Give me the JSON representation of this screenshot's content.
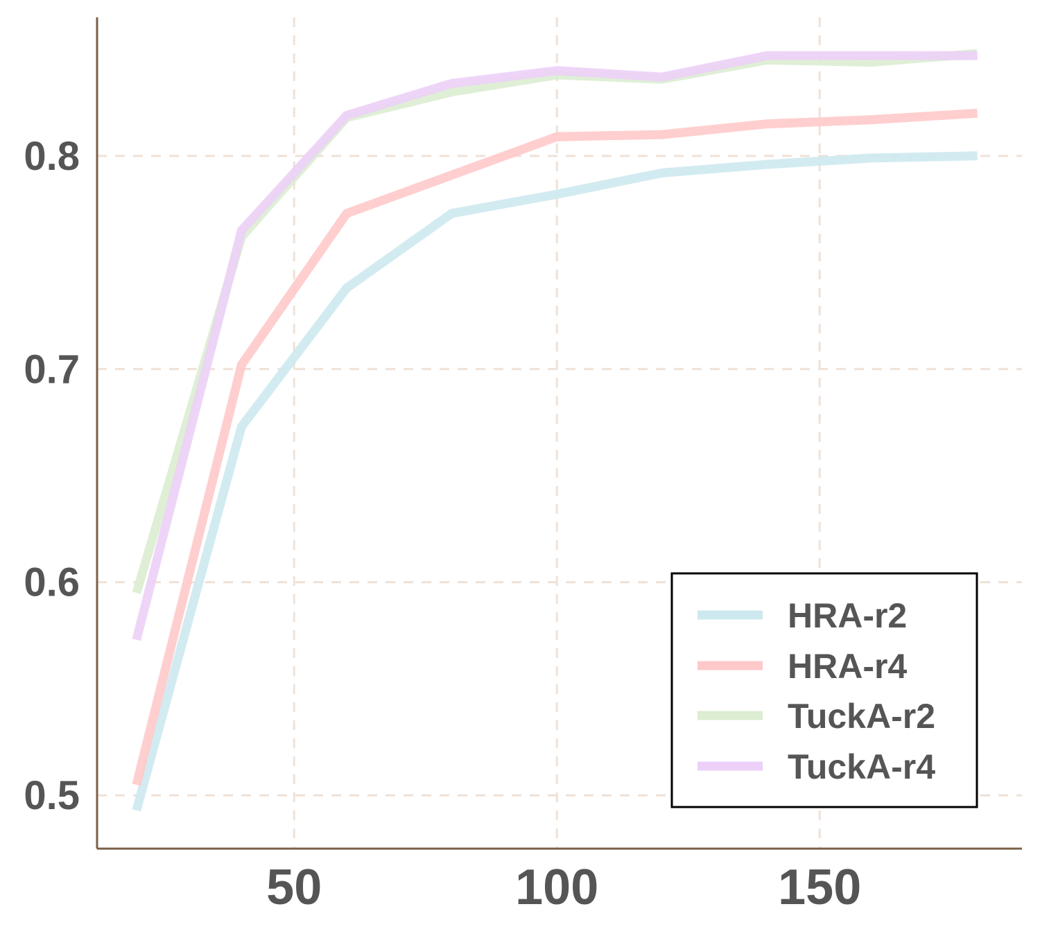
{
  "chart_data": {
    "type": "line",
    "title": "",
    "xlabel": "",
    "ylabel": "",
    "xlim": [
      12.5,
      188.5
    ],
    "ylim": [
      0.475,
      0.865
    ],
    "xticks": [
      50,
      100,
      150
    ],
    "xtick_labels": [
      "50",
      "100",
      "150"
    ],
    "yticks": [
      0.5,
      0.6,
      0.7,
      0.8
    ],
    "ytick_labels": [
      "0.5",
      "0.6",
      "0.7",
      "0.8"
    ],
    "grid": true,
    "legend_position": "bottom-right",
    "x": [
      20,
      40,
      60,
      80,
      100,
      120,
      140,
      160,
      180
    ],
    "series": [
      {
        "name": "HRA-r2",
        "color": "#cde9ef",
        "values": [
          0.493,
          0.673,
          0.738,
          0.773,
          0.782,
          0.792,
          0.796,
          0.799,
          0.8
        ]
      },
      {
        "name": "HRA-r4",
        "color": "#ffc9c9",
        "values": [
          0.505,
          0.702,
          0.773,
          0.791,
          0.809,
          0.81,
          0.815,
          0.817,
          0.82
        ]
      },
      {
        "name": "TuckA-r2",
        "color": "#dcedd2",
        "values": [
          0.595,
          0.762,
          0.818,
          0.83,
          0.838,
          0.836,
          0.845,
          0.844,
          0.848
        ]
      },
      {
        "name": "TuckA-r4",
        "color": "#ecd0f7",
        "values": [
          0.573,
          0.765,
          0.819,
          0.834,
          0.84,
          0.837,
          0.847,
          0.847,
          0.847
        ]
      }
    ]
  }
}
